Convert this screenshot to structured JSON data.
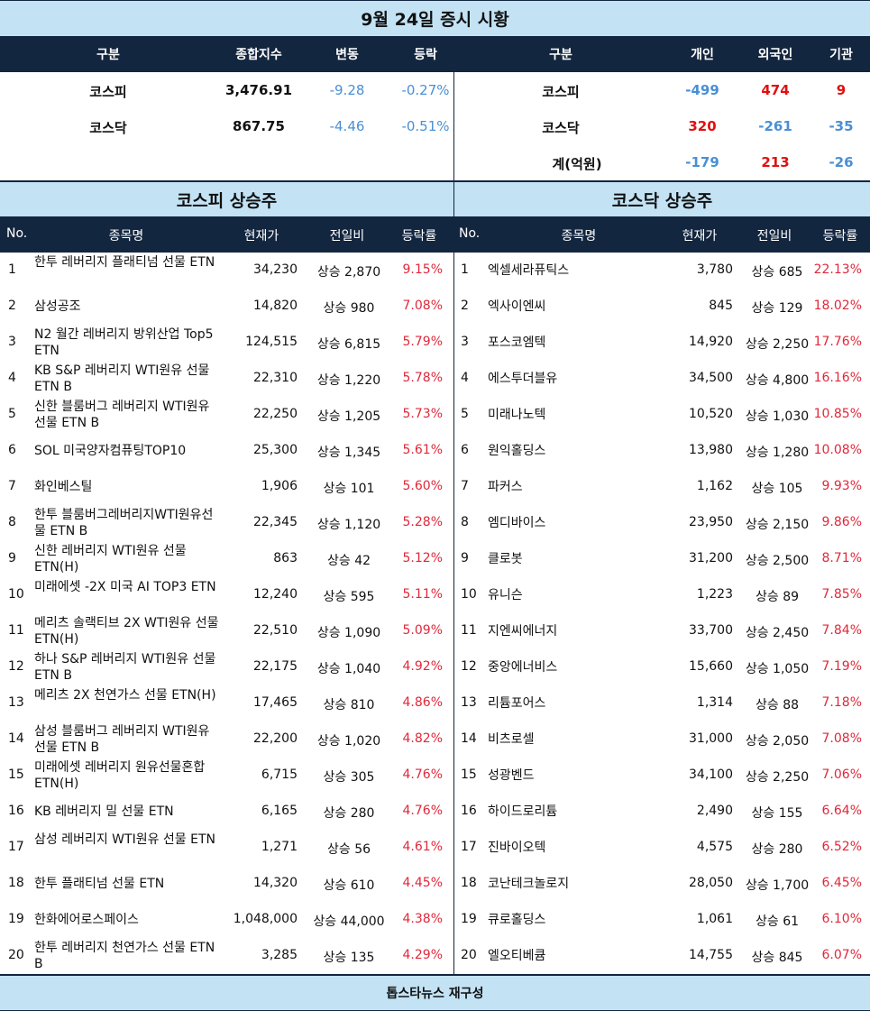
{
  "title": "9월 24일 증시 시황",
  "index_table": {
    "headers": [
      "구분",
      "종합지수",
      "변동",
      "등락"
    ],
    "rows": [
      {
        "name": "코스피",
        "value": "3,476.91",
        "change": "-9.28",
        "rate": "-0.27%"
      },
      {
        "name": "코스닥",
        "value": "867.75",
        "change": "-4.46",
        "rate": "-0.51%"
      }
    ]
  },
  "investor_table": {
    "headers": [
      "구분",
      "개인",
      "외국인",
      "기관"
    ],
    "rows": [
      {
        "name": "코스피",
        "individual": "-499",
        "foreign": "474",
        "institution": "9"
      },
      {
        "name": "코스닥",
        "individual": "320",
        "foreign": "-261",
        "institution": "-35"
      },
      {
        "name": "계(억원)",
        "individual": "-179",
        "foreign": "213",
        "institution": "-26"
      }
    ]
  },
  "colors": {
    "header_bg": "#13263f",
    "section_bg": "#c3e3f5",
    "negative": "#4a8fd6",
    "positive": "#e01010",
    "rate": "#e0283a"
  },
  "kospi_gainers": {
    "title": "코스피 상승주",
    "headers": [
      "No.",
      "종목명",
      "현재가",
      "전일비",
      "등락률"
    ],
    "rows": [
      {
        "no": "1",
        "name": "한투 레버리지 플래티넘 선물 ETN",
        "price": "34,230",
        "change": "상승 2,870",
        "rate": "9.15%"
      },
      {
        "no": "2",
        "name": "삼성공조",
        "price": "14,820",
        "change": "상승 980",
        "rate": "7.08%"
      },
      {
        "no": "3",
        "name": "N2 월간 레버리지 방위산업 Top5 ETN",
        "price": "124,515",
        "change": "상승 6,815",
        "rate": "5.79%"
      },
      {
        "no": "4",
        "name": "KB S&P 레버리지 WTI원유 선물 ETN B",
        "price": "22,310",
        "change": "상승 1,220",
        "rate": "5.78%"
      },
      {
        "no": "5",
        "name": "신한 블룸버그 레버리지 WTI원유선물 ETN B",
        "price": "22,250",
        "change": "상승 1,205",
        "rate": "5.73%"
      },
      {
        "no": "6",
        "name": "SOL 미국양자컴퓨팅TOP10",
        "price": "25,300",
        "change": "상승 1,345",
        "rate": "5.61%"
      },
      {
        "no": "7",
        "name": "화인베스틸",
        "price": "1,906",
        "change": "상승 101",
        "rate": "5.60%"
      },
      {
        "no": "8",
        "name": "한투 블룸버그레버리지WTI원유선물 ETN B",
        "price": "22,345",
        "change": "상승 1,120",
        "rate": "5.28%"
      },
      {
        "no": "9",
        "name": "신한 레버리지 WTI원유 선물 ETN(H)",
        "price": "863",
        "change": "상승 42",
        "rate": "5.12%"
      },
      {
        "no": "10",
        "name": "미래에셋 -2X 미국 AI TOP3 ETN",
        "price": "12,240",
        "change": "상승 595",
        "rate": "5.11%"
      },
      {
        "no": "11",
        "name": "메리츠 솔랙티브 2X WTI원유 선물 ETN(H)",
        "price": "22,510",
        "change": "상승 1,090",
        "rate": "5.09%"
      },
      {
        "no": "12",
        "name": "하나 S&P 레버리지 WTI원유 선물 ETN B",
        "price": "22,175",
        "change": "상승 1,040",
        "rate": "4.92%"
      },
      {
        "no": "13",
        "name": "메리츠 2X 천연가스 선물 ETN(H)",
        "price": "17,465",
        "change": "상승 810",
        "rate": "4.86%"
      },
      {
        "no": "14",
        "name": "삼성 블룸버그 레버리지 WTI원유선물 ETN B",
        "price": "22,200",
        "change": "상승 1,020",
        "rate": "4.82%"
      },
      {
        "no": "15",
        "name": "미래에셋 레버리지 원유선물혼합 ETN(H)",
        "price": "6,715",
        "change": "상승 305",
        "rate": "4.76%"
      },
      {
        "no": "16",
        "name": "KB 레버리지 밀 선물 ETN",
        "price": "6,165",
        "change": "상승 280",
        "rate": "4.76%"
      },
      {
        "no": "17",
        "name": "삼성 레버리지 WTI원유 선물 ETN",
        "price": "1,271",
        "change": "상승 56",
        "rate": "4.61%"
      },
      {
        "no": "18",
        "name": "한투 플래티넘 선물 ETN",
        "price": "14,320",
        "change": "상승 610",
        "rate": "4.45%"
      },
      {
        "no": "19",
        "name": "한화에어로스페이스",
        "price": "1,048,000",
        "change": "상승 44,000",
        "rate": "4.38%"
      },
      {
        "no": "20",
        "name": "한투 레버리지 천연가스 선물 ETN B",
        "price": "3,285",
        "change": "상승 135",
        "rate": "4.29%"
      }
    ]
  },
  "kosdaq_gainers": {
    "title": "코스닥 상승주",
    "headers": [
      "No.",
      "종목명",
      "현재가",
      "전일비",
      "등락률"
    ],
    "rows": [
      {
        "no": "1",
        "name": "엑셀세라퓨틱스",
        "price": "3,780",
        "change": "상승 685",
        "rate": "22.13%"
      },
      {
        "no": "2",
        "name": "엑사이엔씨",
        "price": "845",
        "change": "상승 129",
        "rate": "18.02%"
      },
      {
        "no": "3",
        "name": "포스코엠텍",
        "price": "14,920",
        "change": "상승 2,250",
        "rate": "17.76%"
      },
      {
        "no": "4",
        "name": "에스투더블유",
        "price": "34,500",
        "change": "상승 4,800",
        "rate": "16.16%"
      },
      {
        "no": "5",
        "name": "미래나노텍",
        "price": "10,520",
        "change": "상승 1,030",
        "rate": "10.85%"
      },
      {
        "no": "6",
        "name": "원익홀딩스",
        "price": "13,980",
        "change": "상승 1,280",
        "rate": "10.08%"
      },
      {
        "no": "7",
        "name": "파커스",
        "price": "1,162",
        "change": "상승 105",
        "rate": "9.93%"
      },
      {
        "no": "8",
        "name": "엠디바이스",
        "price": "23,950",
        "change": "상승 2,150",
        "rate": "9.86%"
      },
      {
        "no": "9",
        "name": "클로봇",
        "price": "31,200",
        "change": "상승 2,500",
        "rate": "8.71%"
      },
      {
        "no": "10",
        "name": "유니슨",
        "price": "1,223",
        "change": "상승 89",
        "rate": "7.85%"
      },
      {
        "no": "11",
        "name": "지엔씨에너지",
        "price": "33,700",
        "change": "상승 2,450",
        "rate": "7.84%"
      },
      {
        "no": "12",
        "name": "중앙에너비스",
        "price": "15,660",
        "change": "상승 1,050",
        "rate": "7.19%"
      },
      {
        "no": "13",
        "name": "리튬포어스",
        "price": "1,314",
        "change": "상승 88",
        "rate": "7.18%"
      },
      {
        "no": "14",
        "name": "비츠로셀",
        "price": "31,000",
        "change": "상승 2,050",
        "rate": "7.08%"
      },
      {
        "no": "15",
        "name": "성광벤드",
        "price": "34,100",
        "change": "상승 2,250",
        "rate": "7.06%"
      },
      {
        "no": "16",
        "name": "하이드로리튬",
        "price": "2,490",
        "change": "상승 155",
        "rate": "6.64%"
      },
      {
        "no": "17",
        "name": "진바이오텍",
        "price": "4,575",
        "change": "상승 280",
        "rate": "6.52%"
      },
      {
        "no": "18",
        "name": "코난테크놀로지",
        "price": "28,050",
        "change": "상승 1,700",
        "rate": "6.45%"
      },
      {
        "no": "19",
        "name": "큐로홀딩스",
        "price": "1,061",
        "change": "상승 61",
        "rate": "6.10%"
      },
      {
        "no": "20",
        "name": "엘오티베큠",
        "price": "14,755",
        "change": "상승 845",
        "rate": "6.07%"
      }
    ]
  },
  "footer": "톱스타뉴스 재구성"
}
